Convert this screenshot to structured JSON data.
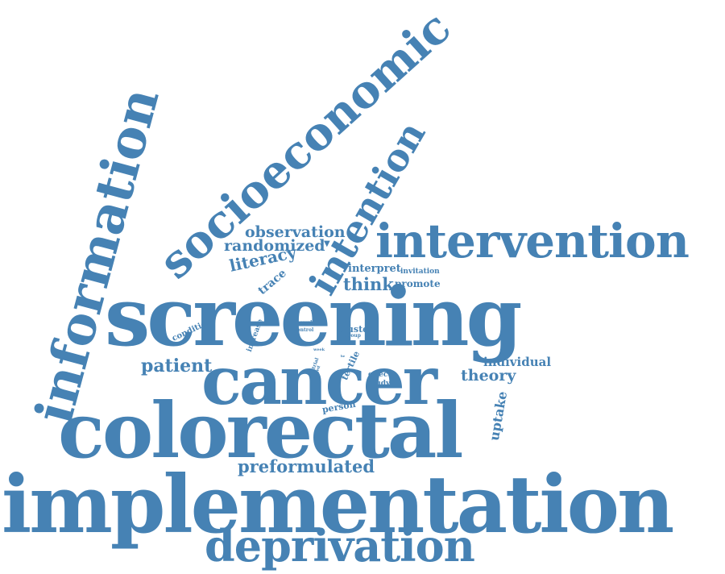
{
  "word_cloud": {
    "color": "#4682b4",
    "background": "#ffffff",
    "words": {
      "implementation": "implementation",
      "colorectal": "colorectal",
      "screening": "screening",
      "cancer": "cancer",
      "deprivation": "deprivation",
      "intervention": "intervention",
      "information": "information",
      "socioeconomic": "socioeconomic",
      "intention": "intention",
      "preformulated": "preformulated",
      "patient": "patient",
      "observation": "observation",
      "randomized": "randomized",
      "literacy": "literacy",
      "think": "think",
      "promote": "promote",
      "interpret": "interpret",
      "invitation": "invitation",
      "individual": "individual",
      "theory": "theory",
      "uptake": "uptake",
      "trace": "trace",
      "condition": "condition",
      "increase": "increase",
      "cluster": "cluster",
      "group": "group",
      "bowel": "bowel",
      "control": "control",
      "week": "week",
      "trial": "trial",
      "aged": "aged",
      "tertile": "tertile",
      "effect": "effect",
      "study": "study",
      "person": "person",
      "be": "be"
    }
  }
}
